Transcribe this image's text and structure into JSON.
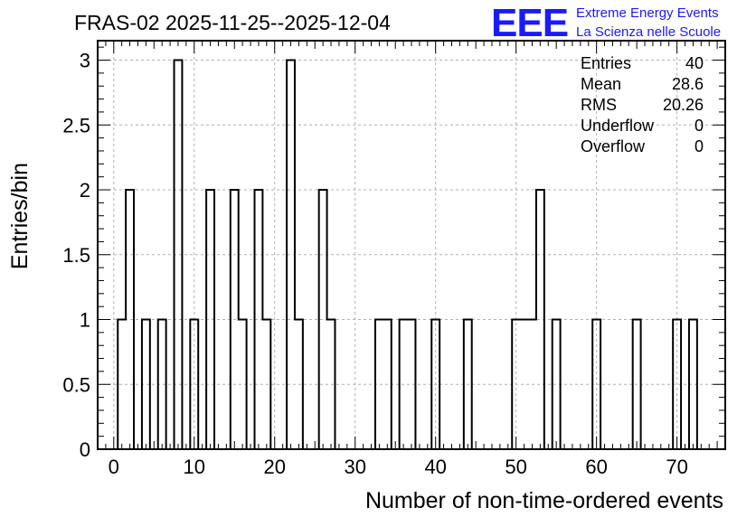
{
  "chart_data": {
    "type": "histogram",
    "title": "FRAS-02 2025-11-25--2025-12-04",
    "xlabel": "Number of non-time-ordered events",
    "ylabel": "Entries/bin",
    "xlim": [
      -2,
      76
    ],
    "ylim": [
      0,
      3.15
    ],
    "bin_width": 1,
    "xticks": [
      0,
      10,
      20,
      30,
      40,
      50,
      60,
      70
    ],
    "yticks": [
      0,
      0.5,
      1,
      1.5,
      2,
      2.5,
      3
    ],
    "ytick_labels": [
      "0",
      "0.5",
      "1",
      "1.5",
      "2",
      "2.5",
      "3"
    ],
    "grid": true,
    "bins": [
      {
        "x": 1,
        "count": 1
      },
      {
        "x": 2,
        "count": 2
      },
      {
        "x": 4,
        "count": 1
      },
      {
        "x": 6,
        "count": 1
      },
      {
        "x": 8,
        "count": 3
      },
      {
        "x": 10,
        "count": 1
      },
      {
        "x": 12,
        "count": 2
      },
      {
        "x": 15,
        "count": 2
      },
      {
        "x": 16,
        "count": 1
      },
      {
        "x": 18,
        "count": 2
      },
      {
        "x": 19,
        "count": 1
      },
      {
        "x": 22,
        "count": 3
      },
      {
        "x": 23,
        "count": 1
      },
      {
        "x": 26,
        "count": 2
      },
      {
        "x": 27,
        "count": 1
      },
      {
        "x": 33,
        "count": 1
      },
      {
        "x": 34,
        "count": 1
      },
      {
        "x": 36,
        "count": 1
      },
      {
        "x": 37,
        "count": 1
      },
      {
        "x": 40,
        "count": 1
      },
      {
        "x": 44,
        "count": 1
      },
      {
        "x": 50,
        "count": 1
      },
      {
        "x": 51,
        "count": 1
      },
      {
        "x": 52,
        "count": 1
      },
      {
        "x": 53,
        "count": 2
      },
      {
        "x": 55,
        "count": 1
      },
      {
        "x": 60,
        "count": 1
      },
      {
        "x": 65,
        "count": 1
      },
      {
        "x": 70,
        "count": 1
      },
      {
        "x": 72,
        "count": 1
      }
    ],
    "stats": [
      {
        "label": "Entries",
        "value": "40"
      },
      {
        "label": "Mean",
        "value": "28.6"
      },
      {
        "label": "RMS",
        "value": "20.26"
      },
      {
        "label": "Underflow",
        "value": "0"
      },
      {
        "label": "Overflow",
        "value": "0"
      }
    ]
  },
  "logo": {
    "mark": "EEE",
    "line1": "Extreme Energy Events",
    "line2": "La Scienza nelle Scuole"
  }
}
